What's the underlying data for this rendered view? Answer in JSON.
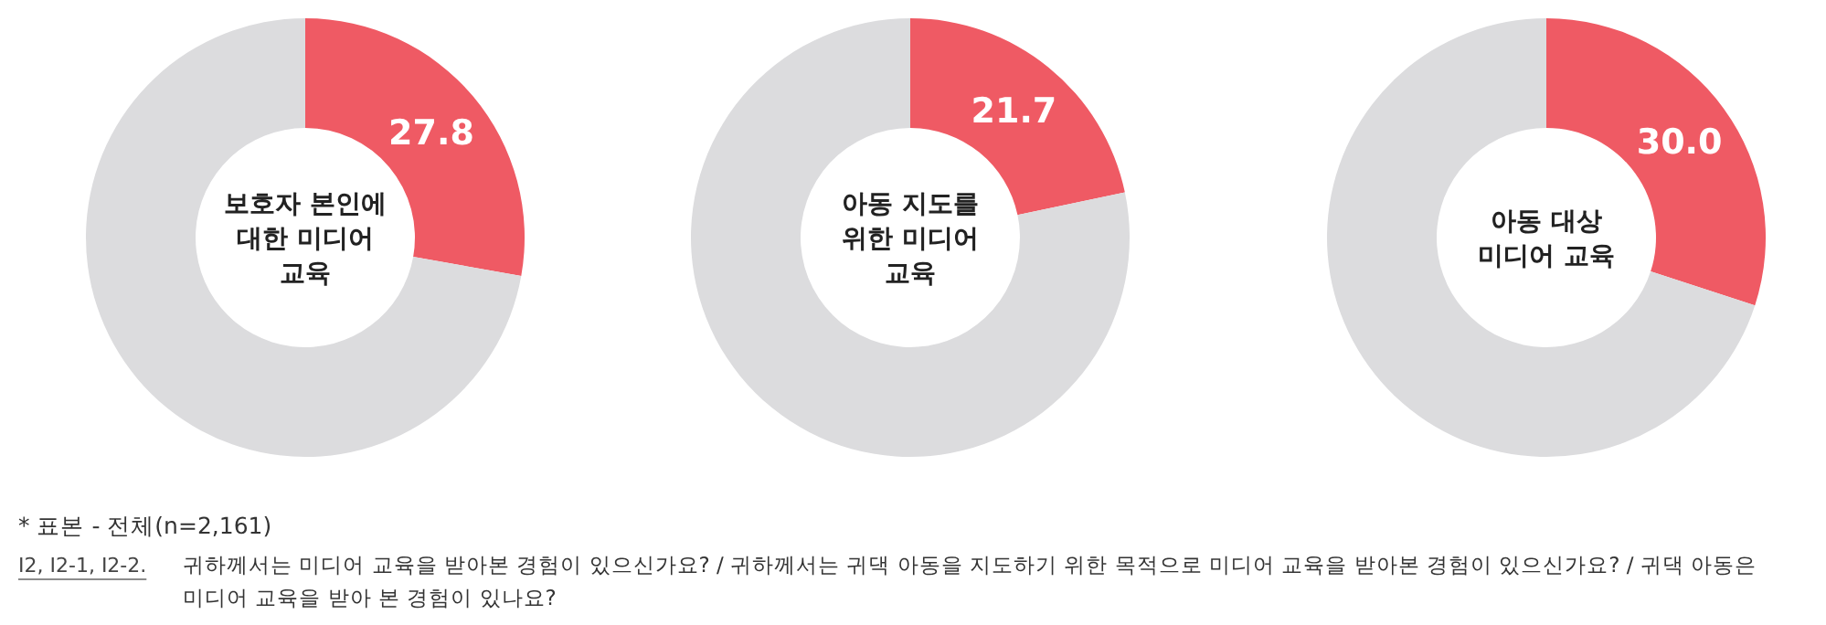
{
  "chart_data": [
    {
      "type": "donut",
      "title": "보호자 본인에 대한 미디어 교육",
      "categories": [
        null,
        null
      ],
      "values": [
        27.8,
        72.2
      ],
      "colors": [
        "#ef5a64",
        "#dcdcde"
      ],
      "value_labels": [
        "27.8",
        null
      ],
      "annotations": [
        "* 표본 - 전체(n=2,161)",
        "I2, I2-1, I2-2.",
        "귀하께서는 미디어 교육을 받아본 경험이 있으신가요? / 귀하께서는 귀댁 아동을 지도하기 위한 목적으로 미디어 교육을 받아본 경험이 있으신가요? / 귀댁 아동은 미디어 교육을 받아 본 경험이 있나요?"
      ]
    },
    {
      "type": "donut",
      "title": "아동 지도를 위한 미디어 교육",
      "categories": [
        null,
        null
      ],
      "values": [
        21.7,
        78.3
      ],
      "colors": [
        "#ef5a64",
        "#dcdcde"
      ],
      "value_labels": [
        "21.7",
        null
      ]
    },
    {
      "type": "donut",
      "title": "아동 대상 미디어 교육",
      "categories": [
        null,
        null
      ],
      "values": [
        30.0,
        70.0
      ],
      "colors": [
        "#ef5a64",
        "#dcdcde"
      ],
      "value_labels": [
        "30.0",
        null
      ]
    }
  ]
}
